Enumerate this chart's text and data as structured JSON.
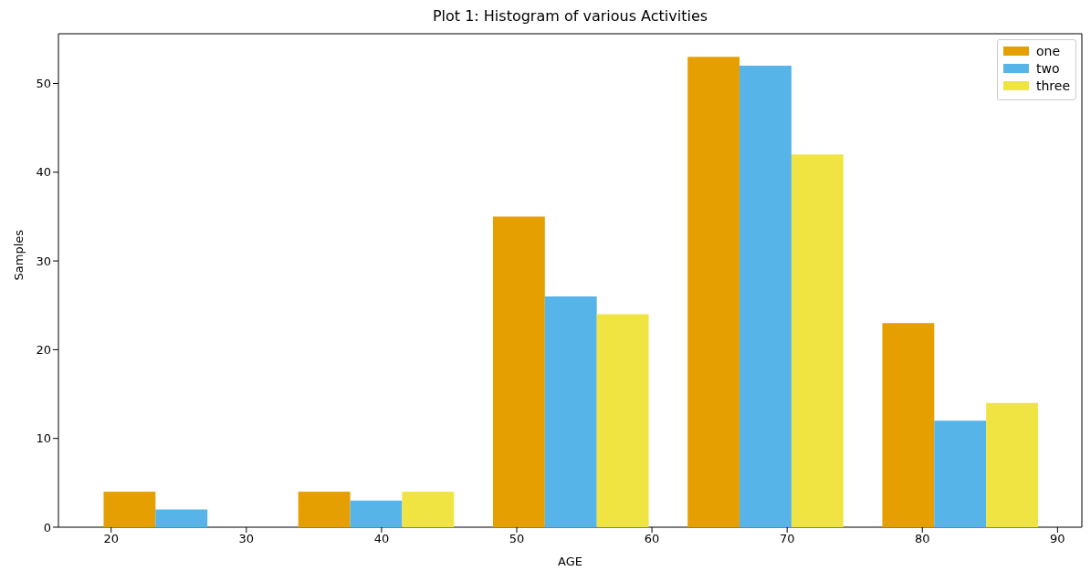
{
  "chart_data": {
    "type": "histogram",
    "title": "Plot 1: Histogram of various Activities",
    "xlabel": "AGE",
    "ylabel": "Samples",
    "bins": [
      18,
      32.4,
      46.8,
      61.2,
      75.6,
      90
    ],
    "series": [
      {
        "name": "one",
        "color": "#e69f00",
        "values": [
          4,
          4,
          35,
          53,
          23
        ]
      },
      {
        "name": "two",
        "color": "#56b4e9",
        "values": [
          2,
          3,
          26,
          52,
          12
        ]
      },
      {
        "name": "three",
        "color": "#f0e442",
        "values": [
          0,
          4,
          24,
          42,
          14
        ]
      }
    ],
    "xlim": [
      16.1,
      91.8
    ],
    "xticks": [
      20,
      30,
      40,
      50,
      60,
      70,
      80,
      90
    ],
    "ylim": [
      0,
      55.6
    ],
    "yticks": [
      0,
      10,
      20,
      30,
      40,
      50
    ],
    "legend": "top right"
  }
}
